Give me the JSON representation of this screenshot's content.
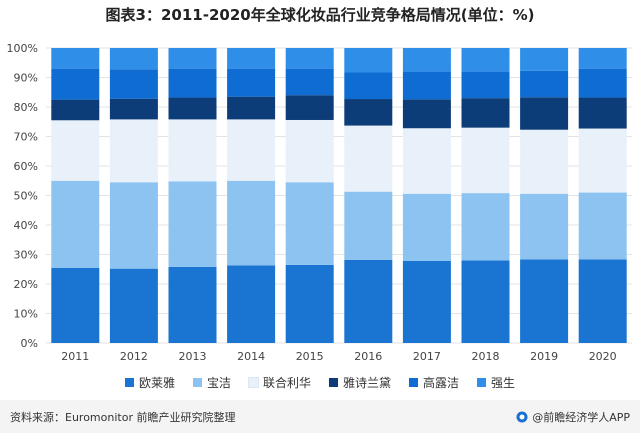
{
  "header": {
    "title": "图表3：2011-2020年全球化妆品行业竞争格局情况(单位：%)"
  },
  "footer": {
    "source": "资料来源：Euromonitor 前瞻产业研究院整理",
    "brand": "@前瞻经济学人APP"
  },
  "colors": {
    "series": [
      "#1a75d2",
      "#8cc3f0",
      "#e8f0fa",
      "#0d3d78",
      "#0e6cd2",
      "#2f8ee8"
    ]
  },
  "chart_data": {
    "type": "bar",
    "stacked": true,
    "categories": [
      "2011",
      "2012",
      "2013",
      "2014",
      "2015",
      "2016",
      "2017",
      "2018",
      "2019",
      "2020"
    ],
    "y_ticks": [
      "0%",
      "10%",
      "20%",
      "30%",
      "40%",
      "50%",
      "60%",
      "70%",
      "80%",
      "90%",
      "100%"
    ],
    "ylim": [
      0,
      100
    ],
    "legend_position": "bottom",
    "series": [
      {
        "name": "欧莱雅",
        "values": [
          25.5,
          25.2,
          25.8,
          26.3,
          26.5,
          28.2,
          27.8,
          28.0,
          28.3,
          28.3
        ]
      },
      {
        "name": "宝洁",
        "values": [
          29.5,
          29.3,
          29.0,
          28.7,
          28.0,
          23.1,
          22.8,
          22.8,
          22.3,
          22.7
        ]
      },
      {
        "name": "联合利华",
        "values": [
          20.5,
          21.3,
          21.0,
          20.8,
          21.1,
          22.4,
          22.2,
          22.2,
          21.7,
          21.7
        ]
      },
      {
        "name": "雅诗兰黛",
        "values": [
          7.0,
          7.0,
          7.4,
          7.7,
          8.4,
          9.0,
          9.8,
          10.0,
          11.0,
          10.5
        ]
      },
      {
        "name": "高露洁",
        "values": [
          10.5,
          10.0,
          9.8,
          9.5,
          9.0,
          9.0,
          9.4,
          9.0,
          9.0,
          9.8
        ]
      },
      {
        "name": "强生",
        "values": [
          7.0,
          7.2,
          7.0,
          7.0,
          7.0,
          8.3,
          8.0,
          8.0,
          7.7,
          7.0
        ]
      }
    ]
  }
}
